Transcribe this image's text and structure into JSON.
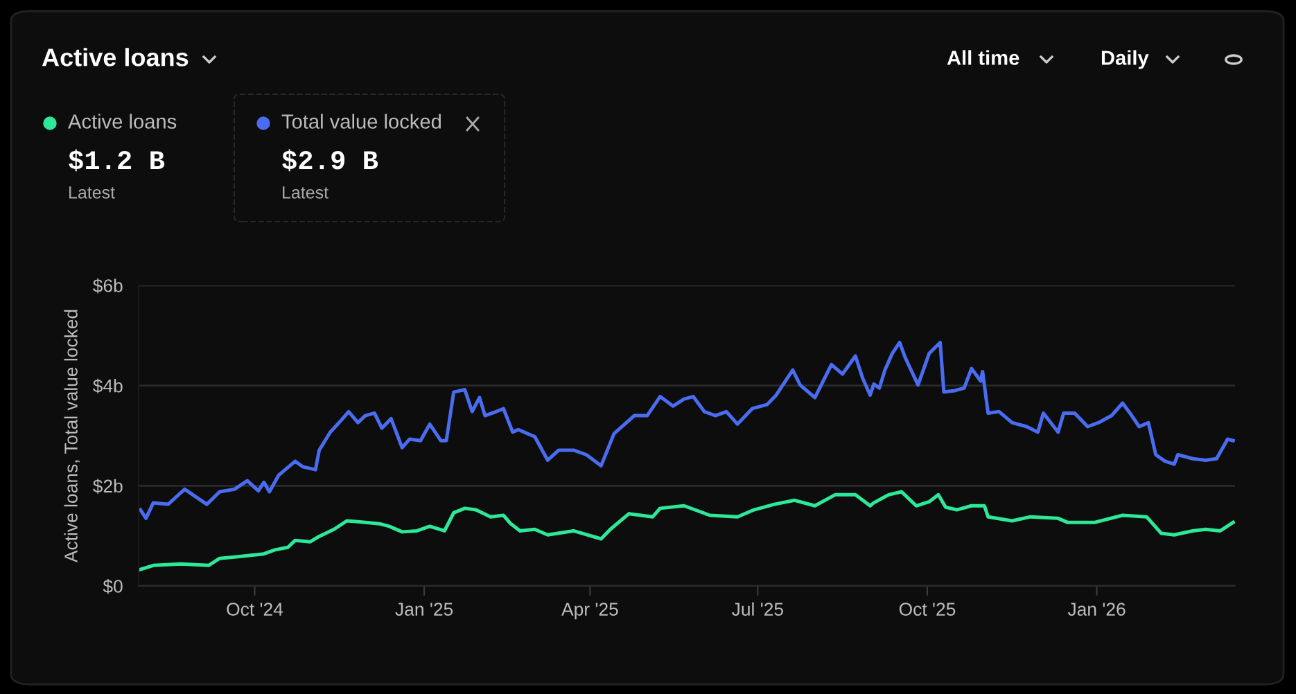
{
  "chart_data": {
    "type": "line",
    "title": "Active loans",
    "ylabel": "Active loans, Total value locked",
    "annotations": [
      "All time",
      "Daily",
      "$1.2 B",
      "Latest",
      "$2.9 B",
      "Latest"
    ],
    "legend": "top left",
    "grid": "y",
    "marker": "none",
    "line_style": "solid",
    "xlim": [
      "2024-07-30",
      "2026-03-17"
    ],
    "ylim": [
      0,
      6
    ],
    "xticks": [
      {
        "value": "2024-10-01",
        "label": "Oct '24"
      },
      {
        "value": "2025-01-01",
        "label": "Jan '25"
      },
      {
        "value": "2025-04-01",
        "label": "Apr '25"
      },
      {
        "value": "2025-07-01",
        "label": "Jul '25"
      },
      {
        "value": "2025-10-01",
        "label": "Oct '25"
      },
      {
        "value": "2026-01-01",
        "label": "Jan '26"
      }
    ],
    "yticks": [
      {
        "value": 0,
        "label": "$0"
      },
      {
        "value": 2,
        "label": "$2b"
      },
      {
        "value": 4,
        "label": "$4b"
      },
      {
        "value": 6,
        "label": "$6b"
      }
    ],
    "series": [
      {
        "name": "Active loans",
        "color": "#2ee89a",
        "x": [
          "2024-07-31",
          "2024-08-07",
          "2024-08-22",
          "2024-09-06",
          "2024-09-12",
          "2024-09-21",
          "2024-10-06",
          "2024-10-12",
          "2024-10-19",
          "2024-10-23",
          "2024-10-31",
          "2024-11-05",
          "2024-11-13",
          "2024-11-20",
          "2024-11-30",
          "2024-12-08",
          "2024-12-13",
          "2024-12-20",
          "2024-12-28",
          "2025-01-04",
          "2025-01-12",
          "2025-01-17",
          "2025-01-23",
          "2025-01-29",
          "2025-02-06",
          "2025-02-13",
          "2025-02-17",
          "2025-02-22",
          "2025-03-02",
          "2025-03-09",
          "2025-03-23",
          "2025-04-07",
          "2025-04-12",
          "2025-04-22",
          "2025-05-05",
          "2025-05-09",
          "2025-05-22",
          "2025-06-05",
          "2025-06-20",
          "2025-06-29",
          "2025-07-10",
          "2025-07-21",
          "2025-08-01",
          "2025-08-12",
          "2025-08-23",
          "2025-08-31",
          "2025-09-02",
          "2025-09-10",
          "2025-09-17",
          "2025-09-25",
          "2025-10-02",
          "2025-10-07",
          "2025-10-11",
          "2025-10-17",
          "2025-10-25",
          "2025-11-01",
          "2025-11-03",
          "2025-11-16",
          "2025-11-26",
          "2025-12-11",
          "2025-12-16",
          "2025-12-31",
          "2026-01-15",
          "2026-01-28",
          "2026-02-05",
          "2026-02-12",
          "2026-02-22",
          "2026-03-01",
          "2026-03-09",
          "2026-03-16"
        ],
        "values": [
          0.33,
          0.41,
          0.44,
          0.41,
          0.55,
          0.58,
          0.64,
          0.72,
          0.77,
          0.91,
          0.88,
          0.99,
          1.13,
          1.3,
          1.27,
          1.24,
          1.19,
          1.08,
          1.1,
          1.19,
          1.1,
          1.46,
          1.55,
          1.52,
          1.38,
          1.41,
          1.24,
          1.1,
          1.13,
          1.02,
          1.1,
          0.94,
          1.13,
          1.44,
          1.38,
          1.55,
          1.6,
          1.41,
          1.38,
          1.52,
          1.63,
          1.71,
          1.6,
          1.82,
          1.82,
          1.6,
          1.66,
          1.82,
          1.88,
          1.6,
          1.68,
          1.82,
          1.57,
          1.52,
          1.6,
          1.6,
          1.38,
          1.3,
          1.38,
          1.35,
          1.27,
          1.27,
          1.41,
          1.38,
          1.05,
          1.02,
          1.1,
          1.13,
          1.1,
          1.27
        ]
      },
      {
        "name": "Total value locked",
        "color": "#4a6cf0",
        "x": [
          "2024-07-31",
          "2024-08-03",
          "2024-08-07",
          "2024-08-15",
          "2024-08-24",
          "2024-09-05",
          "2024-09-12",
          "2024-09-20",
          "2024-09-27",
          "2024-10-03",
          "2024-10-06",
          "2024-10-09",
          "2024-10-14",
          "2024-10-23",
          "2024-10-27",
          "2024-11-03",
          "2024-11-05",
          "2024-11-11",
          "2024-11-17",
          "2024-11-21",
          "2024-11-26",
          "2024-11-30",
          "2024-12-05",
          "2024-12-09",
          "2024-12-14",
          "2024-12-20",
          "2024-12-24",
          "2024-12-30",
          "2025-01-04",
          "2025-01-10",
          "2025-01-13",
          "2025-01-17",
          "2025-01-23",
          "2025-01-27",
          "2025-01-31",
          "2025-02-03",
          "2025-02-09",
          "2025-02-13",
          "2025-02-18",
          "2025-02-21",
          "2025-03-02",
          "2025-03-09",
          "2025-03-15",
          "2025-03-23",
          "2025-03-30",
          "2025-04-07",
          "2025-04-14",
          "2025-04-25",
          "2025-05-02",
          "2025-05-09",
          "2025-05-16",
          "2025-05-22",
          "2025-05-27",
          "2025-06-02",
          "2025-06-08",
          "2025-06-14",
          "2025-06-20",
          "2025-06-28",
          "2025-07-06",
          "2025-07-11",
          "2025-07-20",
          "2025-07-24",
          "2025-08-01",
          "2025-08-10",
          "2025-08-16",
          "2025-08-23",
          "2025-08-27",
          "2025-08-31",
          "2025-09-02",
          "2025-09-05",
          "2025-09-08",
          "2025-09-12",
          "2025-09-16",
          "2025-09-19",
          "2025-09-26",
          "2025-10-02",
          "2025-10-08",
          "2025-10-10",
          "2025-10-16",
          "2025-10-21",
          "2025-10-25",
          "2025-10-30",
          "2025-10-31",
          "2025-11-03",
          "2025-11-09",
          "2025-11-16",
          "2025-11-24",
          "2025-11-30",
          "2025-12-03",
          "2025-12-11",
          "2025-12-14",
          "2025-12-20",
          "2025-12-27",
          "2026-01-02",
          "2026-01-09",
          "2026-01-15",
          "2026-01-19",
          "2026-01-24",
          "2026-01-29",
          "2026-02-02",
          "2026-02-07",
          "2026-02-12",
          "2026-02-14",
          "2026-02-22",
          "2026-03-01",
          "2026-03-07",
          "2026-03-13",
          "2026-03-16"
        ],
        "values": [
          1.52,
          1.35,
          1.66,
          1.63,
          1.93,
          1.63,
          1.88,
          1.93,
          2.1,
          1.9,
          2.07,
          1.88,
          2.21,
          2.49,
          2.38,
          2.32,
          2.71,
          3.07,
          3.31,
          3.48,
          3.26,
          3.4,
          3.45,
          3.15,
          3.34,
          2.76,
          2.93,
          2.9,
          3.23,
          2.9,
          2.9,
          3.87,
          3.92,
          3.48,
          3.76,
          3.4,
          3.48,
          3.54,
          3.07,
          3.12,
          2.98,
          2.51,
          2.71,
          2.71,
          2.62,
          2.4,
          3.04,
          3.4,
          3.4,
          3.78,
          3.59,
          3.73,
          3.78,
          3.48,
          3.4,
          3.48,
          3.23,
          3.54,
          3.62,
          3.81,
          4.31,
          4.01,
          3.76,
          4.42,
          4.23,
          4.59,
          4.14,
          3.81,
          4.03,
          3.95,
          4.31,
          4.64,
          4.86,
          4.56,
          4.01,
          4.64,
          4.86,
          3.87,
          3.9,
          3.95,
          4.34,
          4.09,
          4.28,
          3.45,
          3.48,
          3.26,
          3.18,
          3.07,
          3.45,
          3.07,
          3.45,
          3.45,
          3.18,
          3.26,
          3.4,
          3.65,
          3.45,
          3.18,
          3.26,
          2.62,
          2.49,
          2.43,
          2.62,
          2.54,
          2.51,
          2.54,
          2.93,
          2.9
        ]
      }
    ]
  }
}
